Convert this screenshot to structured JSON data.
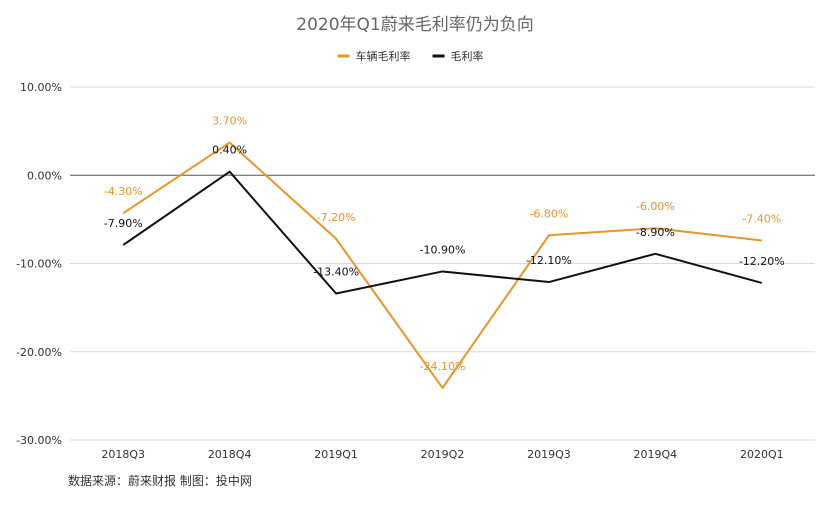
{
  "chart_data": {
    "type": "line",
    "title": "2020年Q1蔚来毛利率仍为负向",
    "xlabel": "",
    "ylabel": "",
    "categories": [
      "2018Q3",
      "2018Q4",
      "2019Q1",
      "2019Q2",
      "2019Q3",
      "2019Q4",
      "2020Q1"
    ],
    "ylim": [
      -30,
      10
    ],
    "yticks": [
      10,
      0,
      -10,
      -20,
      -30
    ],
    "ytick_labels": [
      "10.00%",
      "0.00%",
      "-10.00%",
      "-20.00%",
      "-30.00%"
    ],
    "grid": true,
    "legend_position": "top-center",
    "series": [
      {
        "name": "车辆毛利率",
        "color": "#E8952C",
        "values": [
          -4.3,
          3.7,
          -7.2,
          -24.1,
          -6.8,
          -6.0,
          -7.4
        ],
        "labels": [
          "-4.30%",
          "3.70%",
          "-7.20%",
          "-24.10%",
          "-6.80%",
          "-6.00%",
          "-7.40%"
        ]
      },
      {
        "name": "毛利率",
        "color": "#111111",
        "values": [
          -7.9,
          0.4,
          -13.4,
          -10.9,
          -12.1,
          -8.9,
          -12.2
        ],
        "labels": [
          "-7.90%",
          "0.40%",
          "-13.40%",
          "-10.90%",
          "-12.10%",
          "-8.90%",
          "-12.20%"
        ]
      }
    ],
    "source_note": "数据来源：蔚来财报   制图：投中网"
  }
}
